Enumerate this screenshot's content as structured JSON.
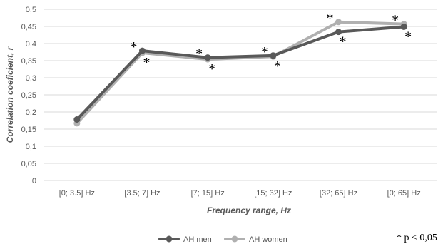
{
  "chart_data": {
    "type": "line",
    "categories": [
      "[0; 3.5] Hz",
      "[3.5; 7] Hz",
      "[7; 15] Hz",
      "[15; 32] Hz",
      "[32; 65] Hz",
      "[0; 65] Hz"
    ],
    "series": [
      {
        "name": "AH men",
        "color": "#595959",
        "values": [
          0.178,
          0.379,
          0.359,
          0.365,
          0.434,
          0.449
        ]
      },
      {
        "name": "AH women",
        "color": "#b0b0b0",
        "values": [
          0.167,
          0.373,
          0.354,
          0.362,
          0.463,
          0.457
        ]
      }
    ],
    "significance_marker": "*",
    "significant_points": [
      {
        "category_index": 1,
        "series": [
          "AH men",
          "AH women"
        ]
      },
      {
        "category_index": 2,
        "series": [
          "AH men",
          "AH women"
        ]
      },
      {
        "category_index": 3,
        "series": [
          "AH men",
          "AH women"
        ]
      },
      {
        "category_index": 4,
        "series": [
          "AH men",
          "AH women"
        ]
      },
      {
        "category_index": 5,
        "series": [
          "AH men",
          "AH women"
        ]
      }
    ],
    "xlabel": "Frequency range, Hz",
    "ylabel": "Correlation coeficient, r",
    "ylim": [
      0,
      0.5
    ],
    "yticks": [
      "0",
      "0,05",
      "0,1",
      "0,15",
      "0,2",
      "0,25",
      "0,3",
      "0,35",
      "0,4",
      "0,45",
      "0,5"
    ],
    "grid": true,
    "legend_position": "bottom"
  },
  "footnote": "* p < 0,05"
}
